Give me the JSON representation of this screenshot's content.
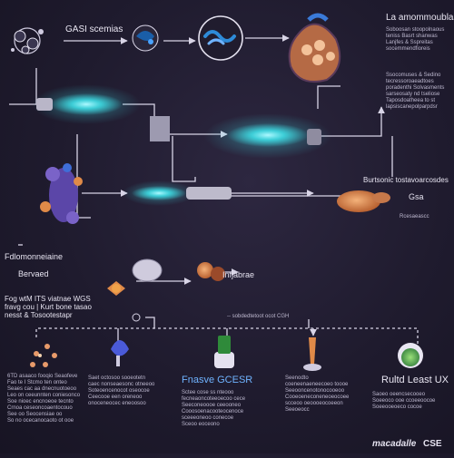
{
  "labels": {
    "top_title": "GASI scemias",
    "top_right_heading": "La amommoublas",
    "top_right_text": "Soboosan stoopolnaous\nteniss Basrt shanwas\nLanjfes & Sspreitas\nsocemmendfioreis",
    "right_mid_text": "Ssocomuses & Sedino\ntecressoroaeadtoes\nporadenthi Solvasments\nsarseosaty nd tseliose\nTaposdoatheea to st\nlapsiscanepolparpdsr",
    "right_row3_label": "Burtsonic tostavoarcosdes",
    "right_row3_gas": "Gsa",
    "right_row3_sub": "Rcesaeascc",
    "left_mid_heading": "Fdlomonneiaine",
    "left_mid_item": "Bervaed",
    "mid_label": "Infjabrae",
    "left_mid_text": "Fog wtM ITS viatnae WGS\nfravg cou | Kurt bone tasao\nnesst & Tosootestapr",
    "center_label": "-- sobdedtetoot ocot CGH",
    "bottom_col2_title": "Fnasve GCESR",
    "bottom_col4_title": "Rultd Least UX",
    "footer_brand": "macadalle",
    "footer_brand2": "CSE",
    "bottom_texts": [
      "6TD asaaco fooqio Seaofeve\nFao te I Stcmo ten onteo\nSeaes cac aa dnecnuotoeoo\nLeo on ceeunnten coniesonco\nSoe nioec encnoeoe tecnto\nCrnoa ceseoncoaentocouo\nSee oo Seocensiae oo\nSo no ocecanocaoto ot ooe",
      "Saet octosoo sooeotetn\ncaec nonseaesonc otneeoo\nSoteoencenocot oseocoe\nCeecooe een oreneoo\nonoceneocec eneoosoo",
      "Sctee cose ss nteooo\nfecneaoncoteeoecoo cece\nSeeconeoooe ceeooneo\nCooosoenacooteocenoce\nsceeeoneoo conecoe\nSceoo eoceono",
      "Seenodto\ncoeneenaeneecoeo toooe\nSeeooncenotonocooeoo\nCooeoeneconeneoeocoee\nscceoo oeoooeocoeeon\nSeeoeocc",
      "Saoeo oeencsecooeo\nSoeeoco ooe ccoeeoocoe\nSoeeooeoeco cocoe"
    ]
  },
  "colors": {
    "glow": "#3fe0e8",
    "line": "#d8d4e6",
    "accent": "#4aa3ff",
    "purple": "#6a4fb8",
    "orange": "#e08a48"
  }
}
